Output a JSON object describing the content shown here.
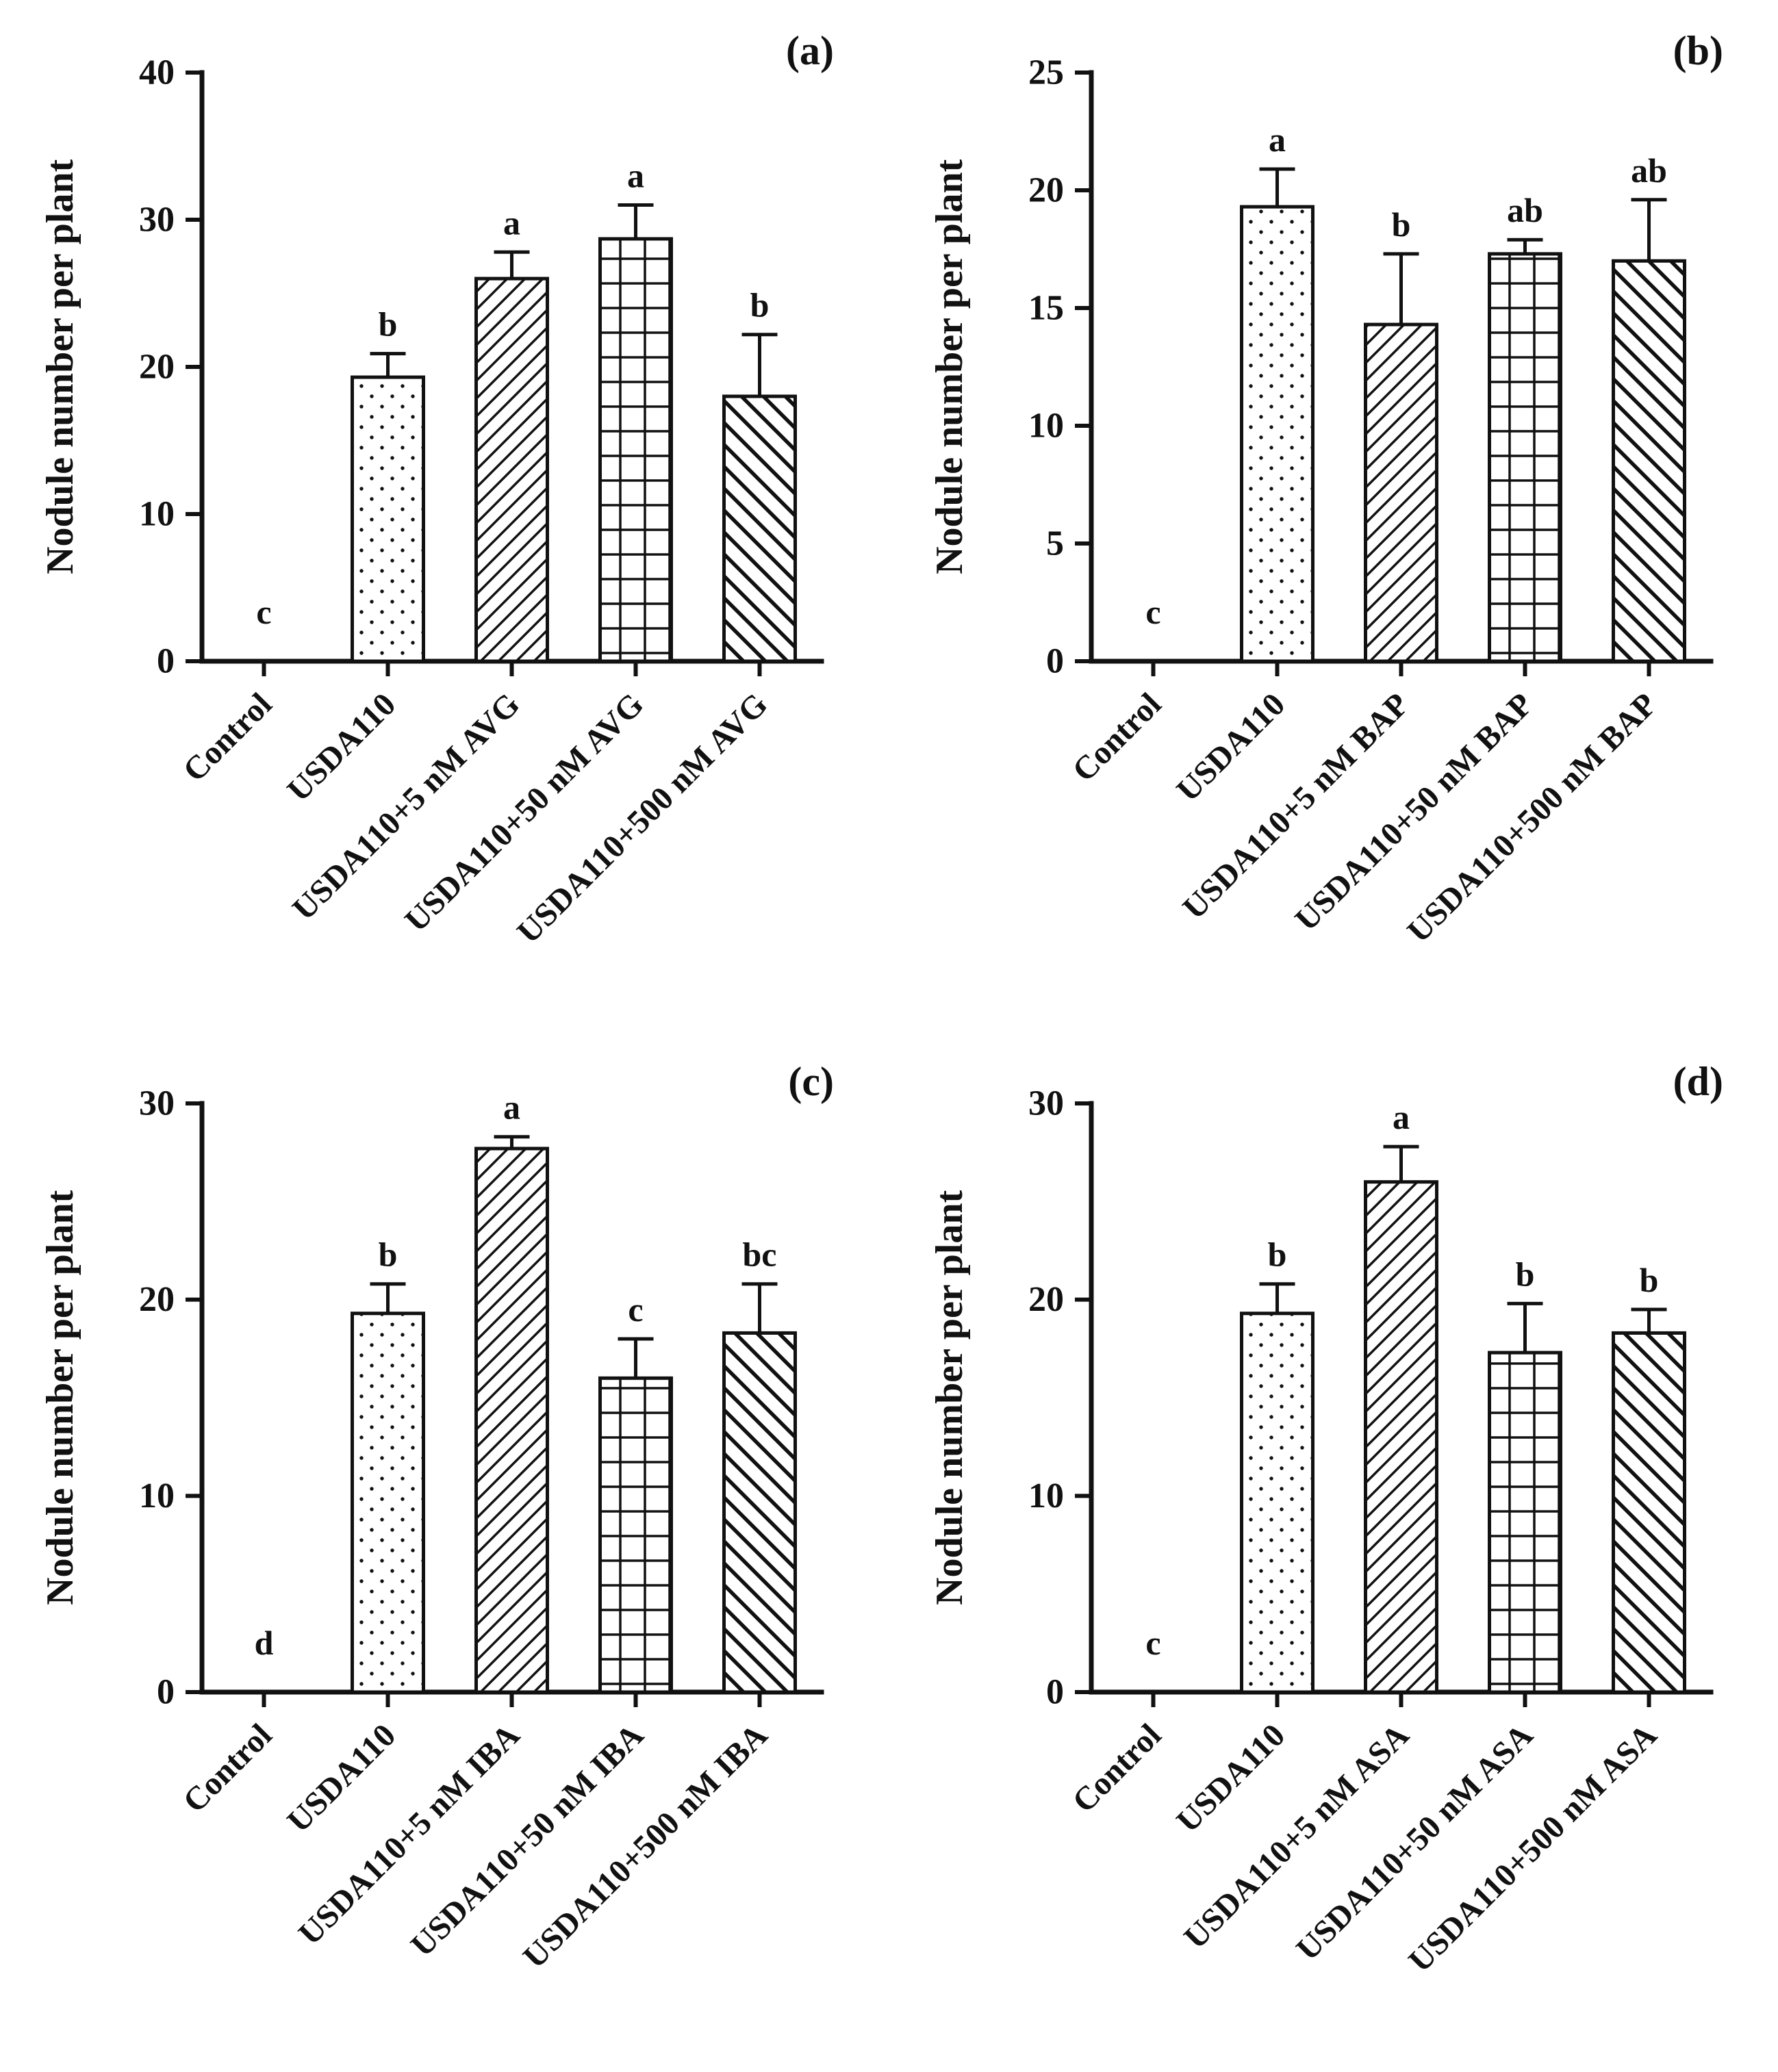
{
  "styles": {
    "ink": "#111111",
    "background": "#ffffff"
  },
  "chart_data": [
    {
      "type": "bar",
      "panel_label": "(a)",
      "ylabel": "Nodule number per plant",
      "ylim": [
        0,
        40
      ],
      "ytick": 10,
      "grid": false,
      "legend": "none",
      "categories": [
        "Control",
        "USDA110",
        "USDA110+5 nM AVG",
        "USDA110+50 nM AVG",
        "USDA110+500 nM AVG"
      ],
      "values": [
        0,
        19.3,
        26.0,
        28.7,
        18.0
      ],
      "errors": [
        0,
        1.6,
        1.8,
        2.3,
        4.2
      ],
      "letters": [
        "c",
        "b",
        "a",
        "a",
        "b"
      ],
      "patterns": [
        "none",
        "dots",
        "diag-up",
        "grid",
        "diag-down"
      ]
    },
    {
      "type": "bar",
      "panel_label": "(b)",
      "ylabel": "Nodule number per plant",
      "ylim": [
        0,
        25
      ],
      "ytick": 5,
      "grid": false,
      "legend": "none",
      "categories": [
        "Control",
        "USDA110",
        "USDA110+5 nM BAP",
        "USDA110+50 nM BAP",
        "USDA110+500 nM BAP"
      ],
      "values": [
        0,
        19.3,
        14.3,
        17.3,
        17.0
      ],
      "errors": [
        0,
        1.6,
        3.0,
        0.6,
        2.6
      ],
      "letters": [
        "c",
        "a",
        "b",
        "ab",
        "ab"
      ],
      "patterns": [
        "none",
        "dots",
        "diag-up",
        "grid",
        "diag-down"
      ]
    },
    {
      "type": "bar",
      "panel_label": "(c)",
      "ylabel": "Nodule number per plant",
      "ylim": [
        0,
        30
      ],
      "ytick": 10,
      "grid": false,
      "legend": "none",
      "categories": [
        "Control",
        "USDA110",
        "USDA110+5 nM IBA",
        "USDA110+50 nM IBA",
        "USDA110+500 nM IBA"
      ],
      "values": [
        0,
        19.3,
        27.7,
        16.0,
        18.3
      ],
      "errors": [
        0,
        1.5,
        0.6,
        2.0,
        2.5
      ],
      "letters": [
        "d",
        "b",
        "a",
        "c",
        "bc"
      ],
      "patterns": [
        "none",
        "dots",
        "diag-up",
        "grid",
        "diag-down"
      ]
    },
    {
      "type": "bar",
      "panel_label": "(d)",
      "ylabel": "Nodule number per plant",
      "ylim": [
        0,
        30
      ],
      "ytick": 10,
      "grid": false,
      "legend": "none",
      "categories": [
        "Control",
        "USDA110",
        "USDA110+5 nM ASA",
        "USDA110+50 nM ASA",
        "USDA110+500 nM ASA"
      ],
      "values": [
        0,
        19.3,
        26.0,
        17.3,
        18.3
      ],
      "errors": [
        0,
        1.5,
        1.8,
        2.5,
        1.2
      ],
      "letters": [
        "c",
        "b",
        "a",
        "b",
        "b"
      ],
      "patterns": [
        "none",
        "dots",
        "diag-up",
        "grid",
        "diag-down"
      ]
    }
  ]
}
